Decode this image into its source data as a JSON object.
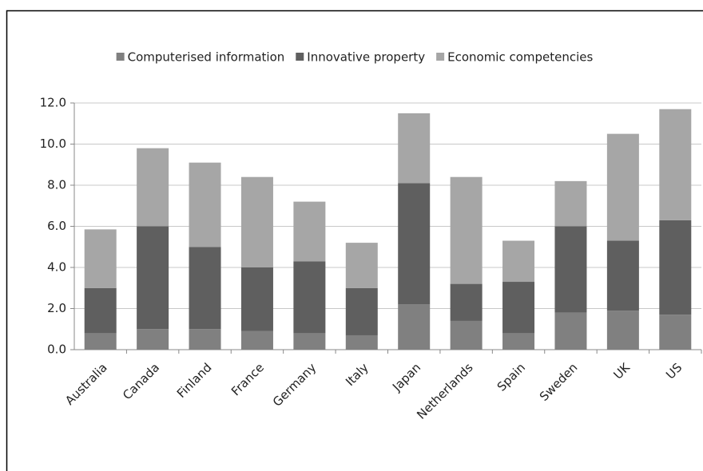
{
  "chart_data": {
    "type": "stacked_bar",
    "categories": [
      "Australia",
      "Canada",
      "Finland",
      "France",
      "Germany",
      "Italy",
      "Japan",
      "Netherlands",
      "Spain",
      "Sweden",
      "UK",
      "US"
    ],
    "series": [
      {
        "name": "Computerised information",
        "color": "#808080",
        "values": [
          0.8,
          1.0,
          1.0,
          0.9,
          0.8,
          0.7,
          2.2,
          1.4,
          0.8,
          1.8,
          1.9,
          1.7
        ]
      },
      {
        "name": "Innovative property",
        "color": "#5f5f5f",
        "values": [
          2.2,
          5.0,
          4.0,
          3.1,
          3.5,
          2.3,
          5.9,
          1.8,
          2.5,
          4.2,
          3.4,
          4.6
        ]
      },
      {
        "name": "Economic competencies",
        "color": "#a6a6a6",
        "values": [
          2.85,
          3.8,
          4.1,
          4.4,
          2.9,
          2.2,
          3.4,
          5.2,
          2.0,
          2.2,
          5.2,
          5.4
        ]
      }
    ],
    "ylim": [
      0,
      12
    ],
    "yticks": [
      {
        "value": 0,
        "label": "0.0"
      },
      {
        "value": 2,
        "label": "2.0"
      },
      {
        "value": 4,
        "label": "4.0"
      },
      {
        "value": 6,
        "label": "6.0"
      },
      {
        "value": 8,
        "label": "8.0"
      },
      {
        "value": 10,
        "label": "10.0"
      },
      {
        "value": 12,
        "label": "12.0"
      }
    ],
    "grid": true,
    "legend": "top"
  }
}
